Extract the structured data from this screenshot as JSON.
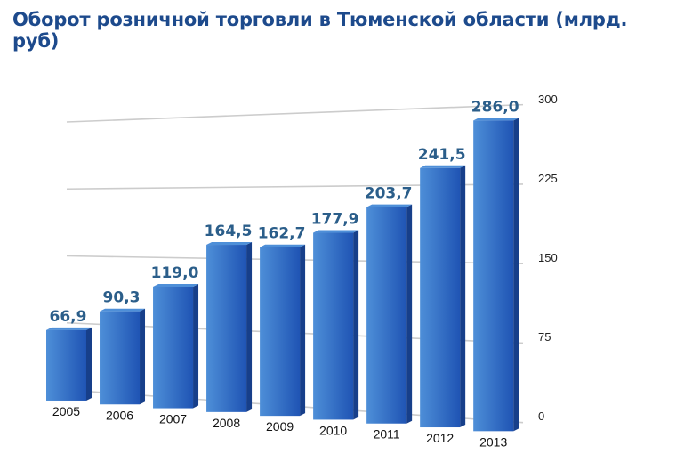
{
  "title": "Оборот розничной торговли в Тюменской области (млрд. руб)",
  "colors": {
    "title": "#1d4a8c",
    "value_label": "#2b5e8a",
    "bar_front_light": "#4e8fd8",
    "bar_front_dark": "#1f54b4",
    "bar_side": "#173f8a",
    "grid": "#cccccc"
  },
  "chart_data": {
    "type": "bar",
    "categories": [
      "2005",
      "2006",
      "2007",
      "2008",
      "2009",
      "2010",
      "2011",
      "2012",
      "2013"
    ],
    "values": [
      66.9,
      90.3,
      119.0,
      164.5,
      162.7,
      177.9,
      203.7,
      241.5,
      286.0
    ],
    "value_labels": [
      "66,9",
      "90,3",
      "119,0",
      "164,5",
      "162,7",
      "177,9",
      "203,7",
      "241,5",
      "286,0"
    ],
    "y_ticks": [
      0,
      75,
      150,
      225,
      300
    ],
    "y_tick_labels": [
      "0",
      "75",
      "150",
      "225",
      "300"
    ],
    "ylim": [
      0,
      300
    ],
    "y_axis_side": "right",
    "grid": true,
    "legend": "none",
    "style": "3d-perspective"
  }
}
